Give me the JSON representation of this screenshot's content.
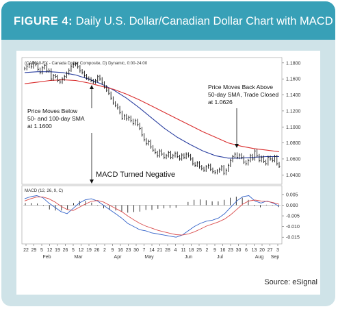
{
  "header": {
    "figure_label": "FIGURE 4:",
    "title": "Daily U.S. Dollar/Canadian Dollar Chart with MACD"
  },
  "source": "Source: eSignal",
  "colors": {
    "header_bg": "#38a0b7",
    "frame_bg": "#cfe3e8",
    "sma50": "#d92b2b",
    "sma100": "#2a3fa0",
    "price": "#111111",
    "macd_line": "#3060c8",
    "macd_signal": "#d94a4a"
  },
  "chart_data": [
    {
      "type": "line",
      "subtype": "ohlc-daily",
      "chart_label": "(CAD A0-FX - Canada Dollar Composite, D) Dynamic, 0:00-24:00",
      "ylim": [
        1.03,
        1.185
      ],
      "y_ticks": [
        "1.1800",
        "1.1600",
        "1.1400",
        "1.1200",
        "1.1000",
        "1.0800",
        "1.0600",
        "1.0400"
      ],
      "y_tick_values": [
        1.18,
        1.16,
        1.14,
        1.12,
        1.1,
        1.08,
        1.06,
        1.04
      ],
      "x_tick_labels": [
        "22",
        "29",
        "5",
        "12",
        "19",
        "26",
        "5",
        "12",
        "19",
        "26",
        "2",
        "9",
        "16",
        "23",
        "30",
        "7",
        "14",
        "21",
        "28",
        "4",
        "11",
        "18",
        "25",
        "2",
        "9",
        "16",
        "23",
        "30",
        "6",
        "13",
        "20",
        "27",
        "3"
      ],
      "month_labels": [
        "Feb",
        "Mar",
        "Apr",
        "May",
        "Jun",
        "Jul",
        "Aug",
        "Sep"
      ],
      "month_label_ticks": [
        3,
        7,
        12,
        16,
        21,
        25,
        30,
        32
      ],
      "series": [
        {
          "name": "price",
          "values": [
            1.173,
            1.176,
            1.178,
            1.175,
            1.18,
            1.178,
            1.172,
            1.168,
            1.174,
            1.177,
            1.17,
            1.171,
            1.16,
            1.164,
            1.163,
            1.158,
            1.156,
            1.16,
            1.163,
            1.167,
            1.171,
            1.176,
            1.178,
            1.179,
            1.175,
            1.17,
            1.168,
            1.164,
            1.161,
            1.16,
            1.158,
            1.156,
            1.158,
            1.163,
            1.16,
            1.155,
            1.15,
            1.146,
            1.142,
            1.136,
            1.13,
            1.127,
            1.124,
            1.118,
            1.111,
            1.114,
            1.11,
            1.112,
            1.108,
            1.104,
            1.108,
            1.103,
            1.098,
            1.09,
            1.084,
            1.079,
            1.082,
            1.075,
            1.071,
            1.068,
            1.064,
            1.07,
            1.066,
            1.062,
            1.064,
            1.068,
            1.062,
            1.064,
            1.067,
            1.063,
            1.06,
            1.065,
            1.062,
            1.066,
            1.064,
            1.06,
            1.054,
            1.052,
            1.055,
            1.05,
            1.048,
            1.046,
            1.05,
            1.052,
            1.047,
            1.044,
            1.043,
            1.045,
            1.047,
            1.05,
            1.042,
            1.046,
            1.052,
            1.058,
            1.063,
            1.066,
            1.062,
            1.065,
            1.062,
            1.056,
            1.054,
            1.058,
            1.064,
            1.06,
            1.07,
            1.064,
            1.058,
            1.062,
            1.057,
            1.054,
            1.062,
            1.06,
            1.058,
            1.063,
            1.054,
            1.051
          ]
        },
        {
          "name": "sma50",
          "values": [
            1.154,
            1.156,
            1.158,
            1.159,
            1.158,
            1.155,
            1.151,
            1.147,
            1.141,
            1.134,
            1.126,
            1.118,
            1.11,
            1.102,
            1.094,
            1.087,
            1.08,
            1.076,
            1.073,
            1.071,
            1.069
          ]
        },
        {
          "name": "sma100",
          "values": [
            1.168,
            1.169,
            1.169,
            1.168,
            1.165,
            1.16,
            1.154,
            1.146,
            1.136,
            1.124,
            1.111,
            1.098,
            1.087,
            1.078,
            1.07,
            1.064,
            1.061,
            1.061,
            1.062,
            1.063,
            1.063
          ]
        }
      ],
      "annotations": [
        {
          "text": "Price Moves Below",
          "line": 1
        },
        {
          "text": "50- and 100-day SMA",
          "line": 2
        },
        {
          "text": "at 1.1600",
          "line": 3
        },
        {
          "text": "Price Moves Back Above",
          "line": 1
        },
        {
          "text": "50-day SMA, Trade Closed",
          "line": 2
        },
        {
          "text": "at 1.0626",
          "line": 3
        },
        {
          "text": "MACD Turned Negative",
          "line": 1
        }
      ]
    },
    {
      "type": "line",
      "subtype": "macd",
      "chart_label": "MACD (12, 26, 9, C)",
      "ylim": [
        -0.0175,
        0.0085
      ],
      "y_ticks": [
        "0.005",
        "0.000",
        "-0.005",
        "-0.010",
        "-0.015"
      ],
      "y_tick_values": [
        0.005,
        0.0,
        -0.005,
        -0.01,
        -0.015
      ],
      "series": [
        {
          "name": "macd",
          "values": [
            0.003,
            0.004,
            0.0045,
            0.0035,
            0.001,
            -0.001,
            -0.003,
            -0.004,
            -0.0015,
            0.001,
            0.0025,
            0.003,
            0.002,
            0.0,
            -0.002,
            -0.004,
            -0.006,
            -0.0085,
            -0.01,
            -0.0115,
            -0.012,
            -0.013,
            -0.0135,
            -0.014,
            -0.0145,
            -0.015,
            -0.014,
            -0.012,
            -0.01,
            -0.0085,
            -0.0075,
            -0.007,
            -0.006,
            -0.004,
            -0.001,
            0.002,
            0.004,
            0.0045,
            0.002,
            0.001,
            0.002,
            0.001,
            -0.0005
          ]
        },
        {
          "name": "signal",
          "values": [
            0.002,
            0.003,
            0.0038,
            0.0038,
            0.003,
            0.0015,
            -0.0005,
            -0.002,
            -0.0025,
            -0.001,
            0.0005,
            0.0018,
            0.0022,
            0.0015,
            0.0,
            -0.0015,
            -0.003,
            -0.005,
            -0.0068,
            -0.0085,
            -0.0098,
            -0.0108,
            -0.0118,
            -0.0125,
            -0.0132,
            -0.0138,
            -0.014,
            -0.0135,
            -0.0125,
            -0.0112,
            -0.0098,
            -0.0088,
            -0.0078,
            -0.0065,
            -0.0045,
            -0.002,
            0.0005,
            0.002,
            0.0024,
            0.002,
            0.0018,
            0.0012,
            0.0004
          ]
        },
        {
          "name": "histogram",
          "values": [
            0.001,
            0.001,
            0.0008,
            -0.0003,
            -0.002,
            -0.0025,
            -0.0025,
            -0.002,
            0.001,
            0.002,
            0.002,
            0.0012,
            -0.0002,
            -0.0015,
            -0.002,
            -0.0025,
            -0.003,
            -0.0035,
            -0.0032,
            -0.003,
            -0.0022,
            -0.0022,
            -0.0017,
            -0.0015,
            -0.0013,
            -0.0012,
            0.0,
            0.0015,
            0.0025,
            0.0027,
            0.0023,
            0.0018,
            0.0018,
            0.0025,
            0.0035,
            0.004,
            0.0035,
            0.0025,
            -0.0004,
            -0.001,
            0.0002,
            -0.0002,
            -0.0009
          ]
        }
      ]
    }
  ]
}
